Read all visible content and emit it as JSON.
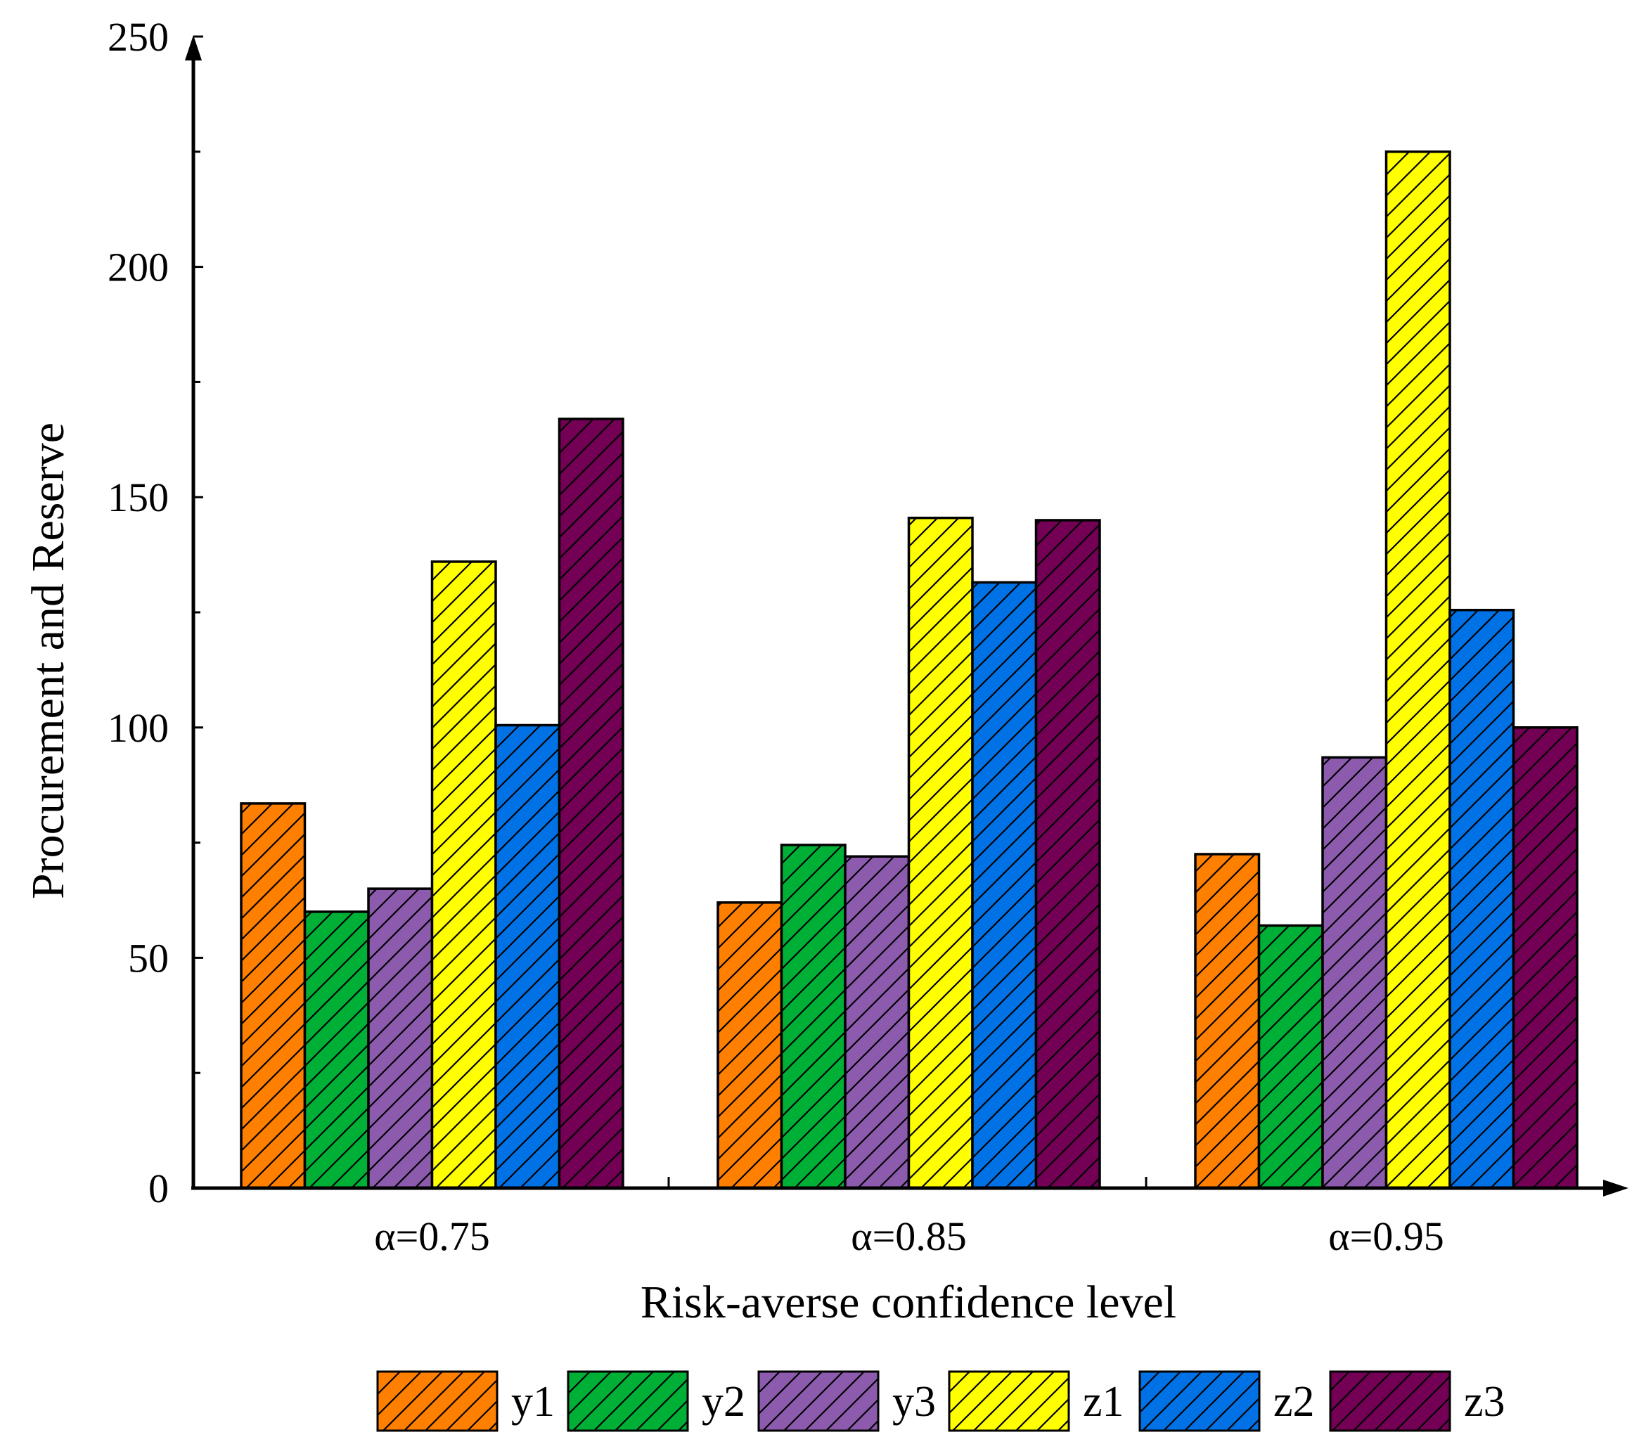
{
  "chart_data": {
    "type": "bar",
    "title": "",
    "xlabel": "Risk-averse confidence level",
    "ylabel": "Procurement and Reserve",
    "ylim": [
      0,
      250
    ],
    "yticks": [
      "0",
      "50",
      "100",
      "150",
      "200",
      "250"
    ],
    "categories": [
      "α=0.75",
      "α=0.85",
      "α=0.95"
    ],
    "legend_position": "bottom",
    "grid": false,
    "series": [
      {
        "name": "y1",
        "color": "#FF8000",
        "values": [
          83.5,
          62,
          72.5
        ]
      },
      {
        "name": "y2",
        "color": "#00B036",
        "values": [
          60,
          74.5,
          57
        ]
      },
      {
        "name": "y3",
        "color": "#8C5BAE",
        "values": [
          65,
          72,
          93.5
        ]
      },
      {
        "name": "z1",
        "color": "#FFFF00",
        "values": [
          136,
          145.5,
          225
        ]
      },
      {
        "name": "z2",
        "color": "#0072E6",
        "values": [
          100.5,
          131.5,
          125.5
        ]
      },
      {
        "name": "z3",
        "color": "#730055",
        "values": [
          167,
          145,
          100
        ]
      }
    ]
  }
}
